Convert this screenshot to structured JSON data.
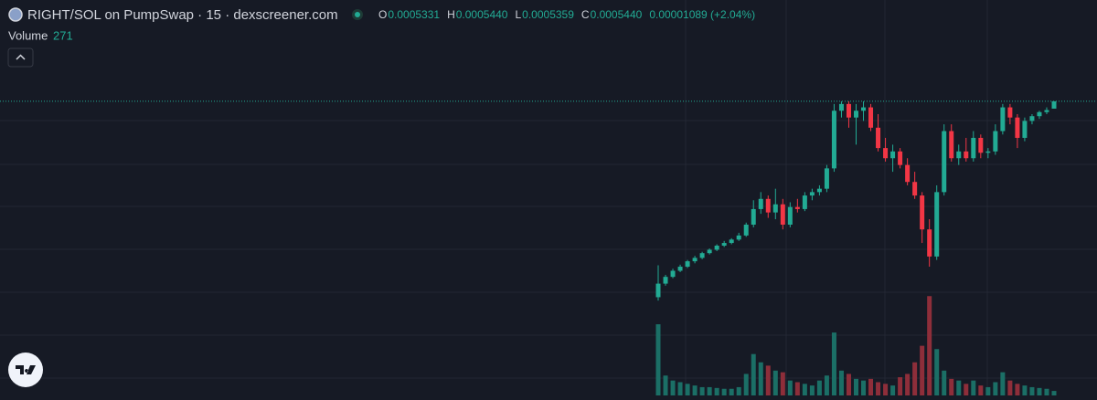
{
  "chart_data": {
    "type": "candlestick",
    "title": "RIGHT/SOL on PumpSwap · 15 · dexscreener.com",
    "legend": [
      {
        "key": "O",
        "label": "0.0005331"
      },
      {
        "key": "H",
        "label": "0.0005440"
      },
      {
        "key": "L",
        "label": "0.0005359"
      },
      {
        "key": "C",
        "label": "0.0005440"
      }
    ],
    "change_label": "0.00001089 (+2.04%)",
    "volume_title": "Volume",
    "colors": {
      "up": "#22ab94",
      "down": "#f23645",
      "up_volume": "#1b6f66",
      "down_volume": "#8e2e3a"
    },
    "ylim": [
      0.00023,
      0.00056
    ],
    "volume_lim": [
      0,
      8000
    ],
    "open": [
      0.000255,
      0.000275,
      0.000285,
      0.000294,
      0.0003,
      0.000308,
      0.000313,
      0.00032,
      0.000325,
      0.000331,
      0.000335,
      0.00034,
      0.000346,
      0.000362,
      0.000385,
      0.0004,
      0.00038,
      0.000392,
      0.000362,
      0.000388,
      0.000385,
      0.000405,
      0.00041,
      0.000415,
      0.000445,
      0.00053,
      0.00054,
      0.00052,
      0.00053,
      0.000535,
      0.000505,
      0.000475,
      0.00046,
      0.00047,
      0.00045,
      0.000425,
      0.000405,
      0.000355,
      0.000315,
      0.00041,
      0.0005,
      0.00046,
      0.00047,
      0.00046,
      0.00049,
      0.000468,
      0.00047,
      0.0005,
      0.000535,
      0.00052,
      0.00049,
      0.000515,
      0.000522,
      0.000528,
      0.0005331
    ],
    "high": [
      0.000302,
      0.000288,
      0.000297,
      0.000303,
      0.00031,
      0.000316,
      0.000322,
      0.000327,
      0.000333,
      0.000338,
      0.000342,
      0.00035,
      0.000365,
      0.000398,
      0.00041,
      0.000405,
      0.000415,
      0.0004,
      0.000395,
      0.0004,
      0.00041,
      0.000415,
      0.00042,
      0.00045,
      0.00054,
      0.000544,
      0.000544,
      0.00054,
      0.000544,
      0.00054,
      0.000525,
      0.00049,
      0.00048,
      0.000475,
      0.00046,
      0.00044,
      0.00041,
      0.00037,
      0.00042,
      0.00051,
      0.00051,
      0.00048,
      0.00049,
      0.0005,
      0.000495,
      0.000475,
      0.00051,
      0.00054,
      0.00054,
      0.000525,
      0.00052,
      0.000525,
      0.00053,
      0.000535,
      0.000544
    ],
    "low": [
      0.00025,
      0.000272,
      0.000283,
      0.000292,
      0.000298,
      0.000305,
      0.000311,
      0.000318,
      0.000323,
      0.000329,
      0.000333,
      0.000338,
      0.000344,
      0.000358,
      0.000378,
      0.000372,
      0.00037,
      0.000355,
      0.000358,
      0.00038,
      0.000382,
      0.000398,
      0.000405,
      0.00041,
      0.00044,
      0.00052,
      0.000505,
      0.00048,
      0.000515,
      0.0005,
      0.00047,
      0.000455,
      0.00044,
      0.000445,
      0.00042,
      0.0004,
      0.000335,
      0.0003,
      0.00031,
      0.000405,
      0.000455,
      0.00045,
      0.000455,
      0.000455,
      0.00046,
      0.00046,
      0.000465,
      0.000495,
      0.00051,
      0.000475,
      0.000485,
      0.00051,
      0.000518,
      0.000525,
      0.0005359
    ],
    "close": [
      0.000275,
      0.000285,
      0.000294,
      0.0003,
      0.000308,
      0.000313,
      0.00032,
      0.000325,
      0.000331,
      0.000335,
      0.00034,
      0.000346,
      0.000362,
      0.000385,
      0.0004,
      0.00038,
      0.000392,
      0.000362,
      0.000388,
      0.000385,
      0.000405,
      0.00041,
      0.000415,
      0.000445,
      0.00053,
      0.00054,
      0.00052,
      0.00053,
      0.000535,
      0.000505,
      0.000475,
      0.00046,
      0.00047,
      0.00045,
      0.000425,
      0.000405,
      0.000355,
      0.000315,
      0.00041,
      0.0005,
      0.00046,
      0.00047,
      0.00046,
      0.00049,
      0.000468,
      0.00047,
      0.0005,
      0.000535,
      0.00052,
      0.00049,
      0.000515,
      0.000522,
      0.000528,
      0.000531,
      0.000544
    ],
    "volume": [
      4300,
      1200,
      900,
      800,
      700,
      600,
      500,
      500,
      450,
      400,
      400,
      500,
      1300,
      2500,
      2000,
      1800,
      1500,
      1400,
      900,
      800,
      700,
      600,
      900,
      1200,
      3800,
      1500,
      1300,
      1000,
      900,
      1000,
      800,
      700,
      600,
      1100,
      1300,
      2000,
      3000,
      6000,
      2800,
      1500,
      1000,
      900,
      700,
      900,
      600,
      500,
      800,
      1400,
      900,
      700,
      600,
      500,
      450,
      400,
      271
    ]
  }
}
